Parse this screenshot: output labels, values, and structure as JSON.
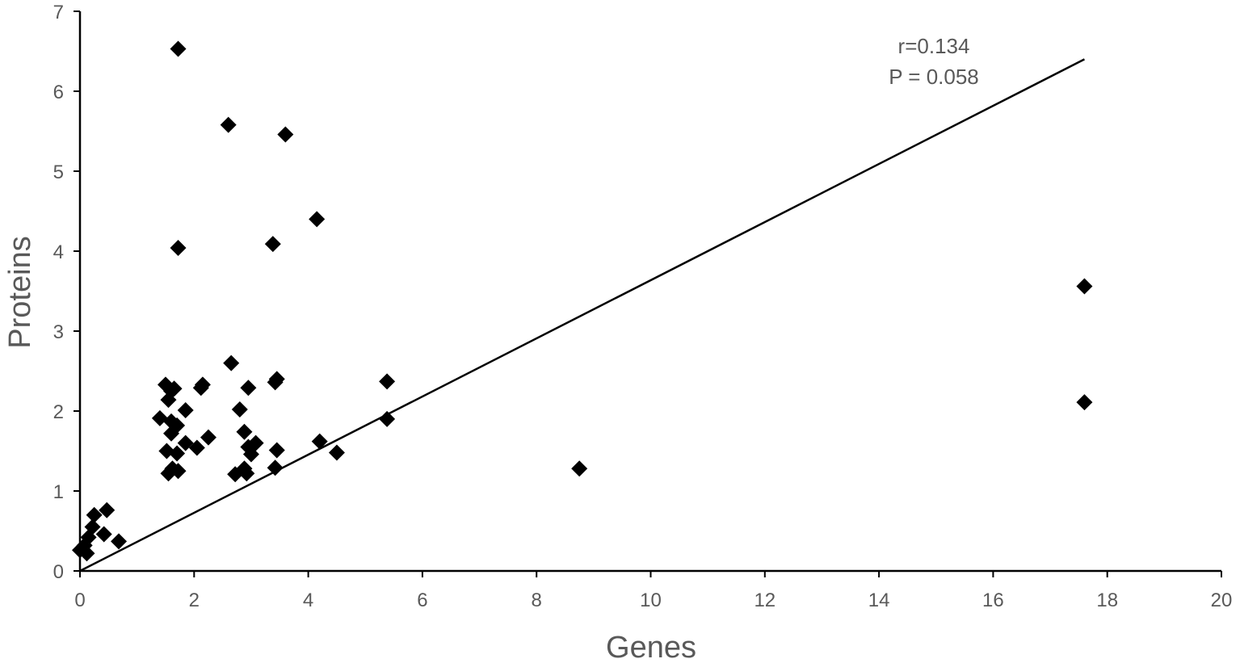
{
  "chart_data": {
    "type": "scatter",
    "xlabel": "Genes",
    "ylabel": "Proteins",
    "xlim": [
      0,
      20
    ],
    "ylim": [
      0,
      7
    ],
    "xticks": [
      0,
      2,
      4,
      6,
      8,
      10,
      12,
      14,
      16,
      18,
      20
    ],
    "yticks": [
      0,
      1,
      2,
      3,
      4,
      5,
      6,
      7
    ],
    "grid": false,
    "legend": "none",
    "marker": "diamond",
    "marker_color": "#000000",
    "annotations": {
      "r_text": "r=0.134",
      "p_text": "P = 0.058"
    },
    "trendline": {
      "x": [
        0,
        17.6
      ],
      "y": [
        0,
        6.4
      ]
    },
    "points": [
      {
        "x": 0.0,
        "y": 0.26
      },
      {
        "x": 0.08,
        "y": 0.32
      },
      {
        "x": 0.12,
        "y": 0.22
      },
      {
        "x": 0.15,
        "y": 0.42
      },
      {
        "x": 0.22,
        "y": 0.55
      },
      {
        "x": 0.25,
        "y": 0.7
      },
      {
        "x": 0.42,
        "y": 0.46
      },
      {
        "x": 0.47,
        "y": 0.76
      },
      {
        "x": 0.68,
        "y": 0.37
      },
      {
        "x": 1.72,
        "y": 6.53
      },
      {
        "x": 1.72,
        "y": 4.04
      },
      {
        "x": 2.6,
        "y": 5.58
      },
      {
        "x": 3.6,
        "y": 5.46
      },
      {
        "x": 3.38,
        "y": 4.09
      },
      {
        "x": 4.15,
        "y": 4.4
      },
      {
        "x": 1.4,
        "y": 1.91
      },
      {
        "x": 1.5,
        "y": 2.33
      },
      {
        "x": 1.55,
        "y": 2.14
      },
      {
        "x": 1.6,
        "y": 2.25
      },
      {
        "x": 1.65,
        "y": 2.28
      },
      {
        "x": 1.6,
        "y": 1.87
      },
      {
        "x": 1.6,
        "y": 1.72
      },
      {
        "x": 1.7,
        "y": 1.82
      },
      {
        "x": 1.52,
        "y": 1.5
      },
      {
        "x": 1.7,
        "y": 1.47
      },
      {
        "x": 1.55,
        "y": 1.22
      },
      {
        "x": 1.62,
        "y": 1.28
      },
      {
        "x": 1.72,
        "y": 1.25
      },
      {
        "x": 1.85,
        "y": 1.6
      },
      {
        "x": 1.85,
        "y": 2.01
      },
      {
        "x": 2.05,
        "y": 1.54
      },
      {
        "x": 2.12,
        "y": 2.29
      },
      {
        "x": 2.15,
        "y": 2.33
      },
      {
        "x": 2.25,
        "y": 1.67
      },
      {
        "x": 2.65,
        "y": 2.6
      },
      {
        "x": 2.8,
        "y": 2.02
      },
      {
        "x": 2.88,
        "y": 1.74
      },
      {
        "x": 2.95,
        "y": 2.29
      },
      {
        "x": 2.72,
        "y": 1.21
      },
      {
        "x": 2.92,
        "y": 1.22
      },
      {
        "x": 2.88,
        "y": 1.28
      },
      {
        "x": 2.95,
        "y": 1.55
      },
      {
        "x": 3.0,
        "y": 1.46
      },
      {
        "x": 3.08,
        "y": 1.6
      },
      {
        "x": 3.42,
        "y": 2.36
      },
      {
        "x": 3.45,
        "y": 2.4
      },
      {
        "x": 3.45,
        "y": 1.51
      },
      {
        "x": 3.42,
        "y": 1.29
      },
      {
        "x": 4.2,
        "y": 1.62
      },
      {
        "x": 4.5,
        "y": 1.48
      },
      {
        "x": 5.38,
        "y": 2.37
      },
      {
        "x": 5.38,
        "y": 1.9
      },
      {
        "x": 8.75,
        "y": 1.28
      },
      {
        "x": 17.6,
        "y": 3.56
      },
      {
        "x": 17.6,
        "y": 2.11
      }
    ]
  }
}
